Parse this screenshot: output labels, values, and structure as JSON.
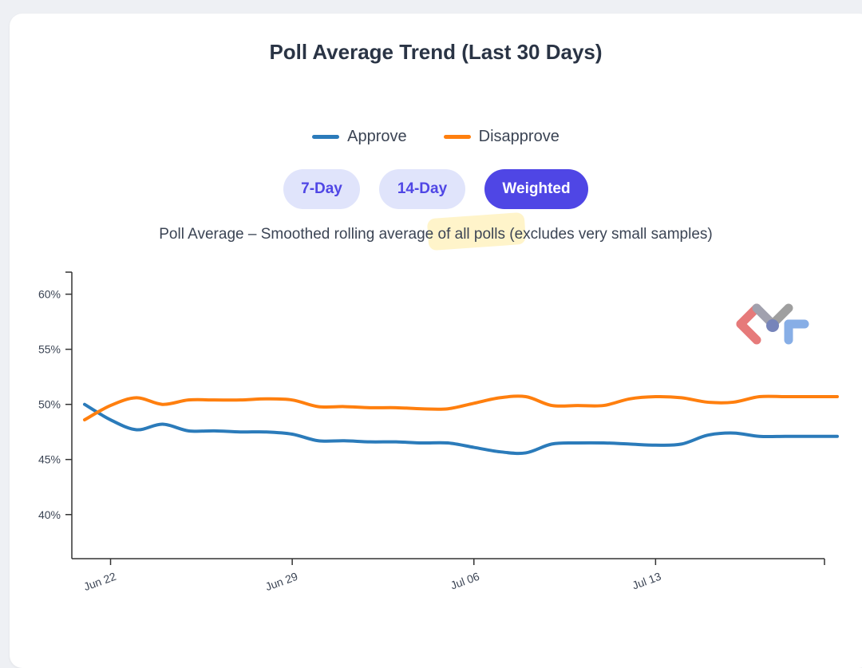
{
  "chart_title": "Poll Average Trend (Last 30 Days)",
  "legend": [
    {
      "label": "Approve",
      "color": "#2b7bba"
    },
    {
      "label": "Disapprove",
      "color": "#ff7f0e"
    }
  ],
  "tabs": [
    {
      "label": "7-Day",
      "active": false
    },
    {
      "label": "14-Day",
      "active": false
    },
    {
      "label": "Weighted",
      "active": true
    }
  ],
  "subtitle": "Poll Average – Smoothed rolling average of all polls (excludes very small samples)",
  "colors": {
    "accent": "#4f46e5",
    "approve": "#2b7bba",
    "disapprove": "#ff7f0e"
  },
  "chart_data": {
    "type": "line",
    "title": "Poll Average Trend (Last 30 Days)",
    "xlabel": "",
    "ylabel": "",
    "ylim": [
      36,
      62
    ],
    "y_ticks": [
      40,
      45,
      50,
      55,
      60
    ],
    "y_tick_labels": [
      "40%",
      "45%",
      "50%",
      "55%",
      "60%"
    ],
    "x_ticks": [
      "Jun 22",
      "Jun 29",
      "Jul 06",
      "Jul 13"
    ],
    "x": [
      "Jun 21",
      "Jun 22",
      "Jun 23",
      "Jun 24",
      "Jun 25",
      "Jun 26",
      "Jun 27",
      "Jun 28",
      "Jun 29",
      "Jun 30",
      "Jul 01",
      "Jul 02",
      "Jul 03",
      "Jul 04",
      "Jul 05",
      "Jul 06",
      "Jul 07",
      "Jul 08",
      "Jul 09",
      "Jul 10",
      "Jul 11",
      "Jul 12",
      "Jul 13",
      "Jul 14",
      "Jul 15",
      "Jul 16",
      "Jul 17",
      "Jul 18",
      "Jul 19",
      "Jul 20"
    ],
    "series": [
      {
        "name": "Approve",
        "color": "#2b7bba",
        "values": [
          50.0,
          48.6,
          47.7,
          48.2,
          47.6,
          47.6,
          47.5,
          47.5,
          47.3,
          46.7,
          46.7,
          46.6,
          46.6,
          46.5,
          46.5,
          46.1,
          45.7,
          45.6,
          46.4,
          46.5,
          46.5,
          46.4,
          46.3,
          46.4,
          47.2,
          47.4,
          47.1,
          47.1,
          47.1,
          47.1
        ]
      },
      {
        "name": "Disapprove",
        "color": "#ff7f0e",
        "values": [
          48.6,
          49.9,
          50.6,
          50.0,
          50.4,
          50.4,
          50.4,
          50.5,
          50.4,
          49.8,
          49.8,
          49.7,
          49.7,
          49.6,
          49.6,
          50.1,
          50.6,
          50.7,
          49.9,
          49.9,
          49.9,
          50.5,
          50.7,
          50.6,
          50.2,
          50.2,
          50.7,
          50.7,
          50.7,
          50.7
        ]
      }
    ],
    "grid": false,
    "legend_position": "top-center"
  }
}
